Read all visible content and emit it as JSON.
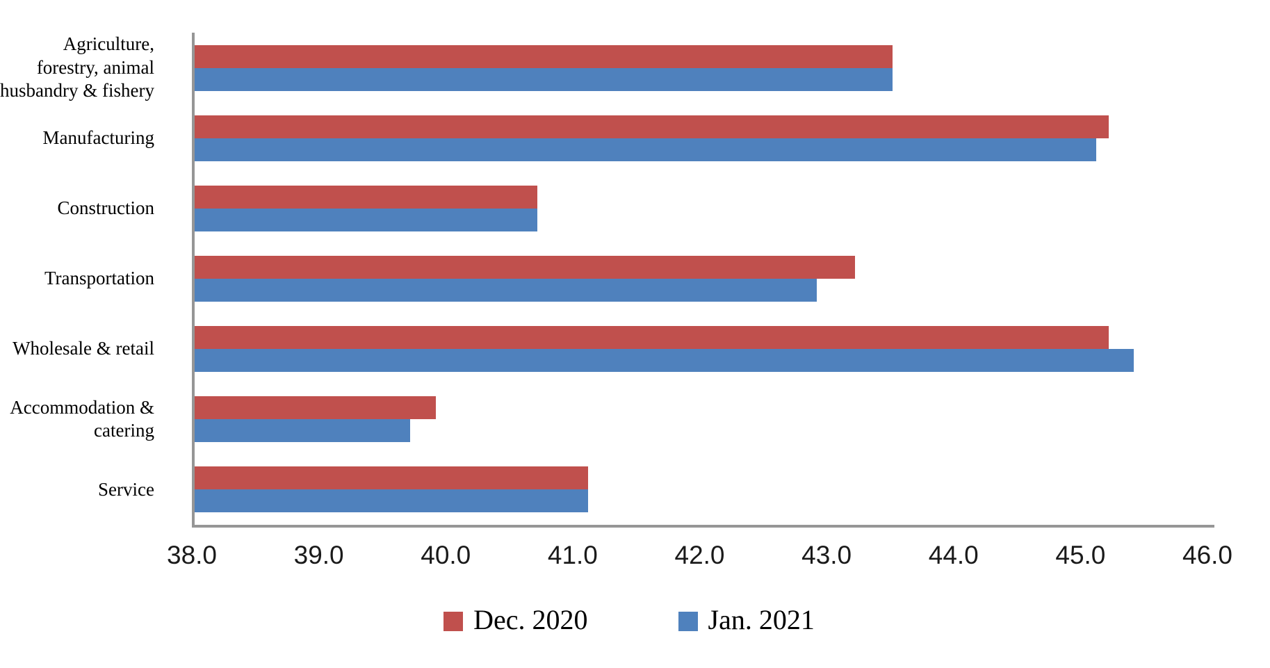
{
  "chart_data": {
    "type": "bar",
    "orientation": "horizontal",
    "title": "",
    "xlabel": "",
    "ylabel": "",
    "grid": false,
    "legend_position": "bottom",
    "categories": [
      "Agriculture, forestry, animal husbandry & fishery",
      "Manufacturing",
      "Construction",
      "Transportation",
      "Wholesale & retail",
      "Accommodation & catering",
      "Service"
    ],
    "series": [
      {
        "name": "Dec. 2020",
        "color": "#C0504D",
        "values": [
          43.5,
          45.2,
          40.7,
          43.2,
          45.2,
          39.9,
          41.1
        ]
      },
      {
        "name": "Jan. 2021",
        "color": "#4F81BD",
        "values": [
          43.5,
          45.1,
          40.7,
          42.9,
          45.4,
          39.7,
          41.1
        ]
      }
    ],
    "xlim": [
      38.0,
      46.0
    ],
    "x_tick_step": 1.0,
    "x_tick_labels": [
      "38.0",
      "39.0",
      "40.0",
      "41.0",
      "42.0",
      "43.0",
      "44.0",
      "45.0",
      "46.0"
    ]
  },
  "legend": {
    "items": [
      {
        "label": "Dec. 2020",
        "color": "#C0504D"
      },
      {
        "label": "Jan. 2021",
        "color": "#4F81BD"
      }
    ]
  },
  "colors": {
    "axis": "#969696",
    "background": "#FFFFFF",
    "text": "#000000"
  }
}
